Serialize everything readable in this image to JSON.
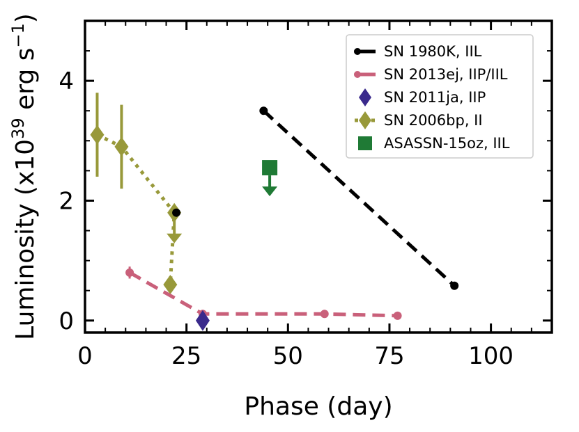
{
  "chart_data": {
    "type": "line",
    "xlabel": "Phase (day)",
    "ylabel_main": "Luminosity (x10",
    "ylabel_exp": "39",
    "ylabel_unit": " erg s",
    "ylabel_unit_exp": "−1",
    "ylabel_close": ")",
    "xlim": [
      0,
      115
    ],
    "ylim": [
      -0.2,
      5.0
    ],
    "xticks": [
      0,
      25,
      50,
      75,
      100
    ],
    "xtick_labels": [
      "0",
      "25",
      "50",
      "75",
      "100"
    ],
    "yticks": [
      0,
      2,
      4
    ],
    "ytick_labels": [
      "0",
      "2",
      "4"
    ],
    "legend_position": "top-right",
    "series": [
      {
        "name": "SN 1980K, IIL",
        "color": "#000000",
        "marker": "circle",
        "linestyle": "dashed",
        "x": [
          44,
          91
        ],
        "y": [
          3.5,
          0.58
        ],
        "upper_limit_point": {
          "x": 22.5,
          "y": 1.8
        }
      },
      {
        "name": "SN 2013ej, IIP/IIL",
        "color": "#c9607a",
        "marker": "circle",
        "linestyle": "dashed",
        "x": [
          11,
          29,
          59,
          77
        ],
        "y": [
          0.8,
          0.11,
          0.11,
          0.08
        ],
        "yerr": [
          0.1,
          0,
          0,
          0
        ]
      },
      {
        "name": "SN 2011ja, IIP",
        "color": "#3a2a8c",
        "marker": "diamond",
        "linestyle": "none",
        "x": [
          29
        ],
        "y": [
          0.0
        ]
      },
      {
        "name": "SN 2006bp, II",
        "color": "#98993a",
        "marker": "diamond",
        "linestyle": "dotted",
        "x": [
          3,
          9,
          22,
          21
        ],
        "y": [
          3.1,
          2.9,
          1.8,
          0.6
        ],
        "yerr": [
          0.7,
          0.7,
          0,
          0
        ],
        "upper_limit_index": 2
      },
      {
        "name": "ASASSN-15oz, IIL",
        "color": "#1f7a35",
        "marker": "square",
        "linestyle": "none",
        "x": [
          45.5
        ],
        "y": [
          2.55
        ],
        "upper_limit": true
      }
    ]
  }
}
